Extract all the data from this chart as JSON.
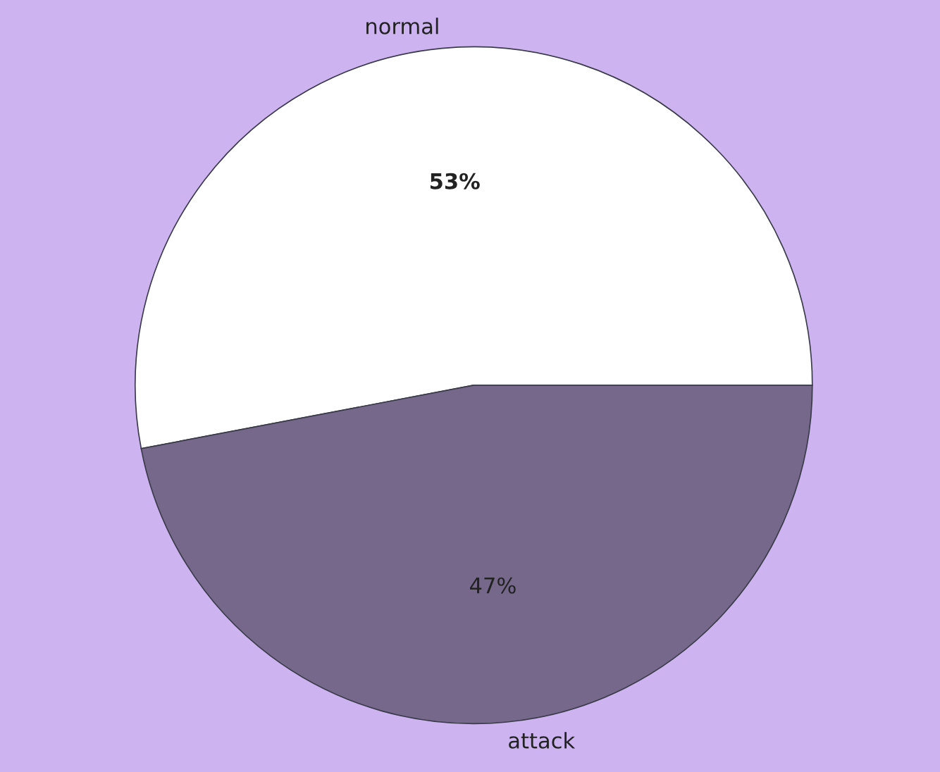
{
  "chart_data": {
    "type": "pie",
    "categories": [
      "normal",
      "attack"
    ],
    "values": [
      53,
      47
    ],
    "colors": [
      "#ffffff",
      "#76688a"
    ],
    "value_labels": [
      "53%",
      "47%"
    ]
  }
}
